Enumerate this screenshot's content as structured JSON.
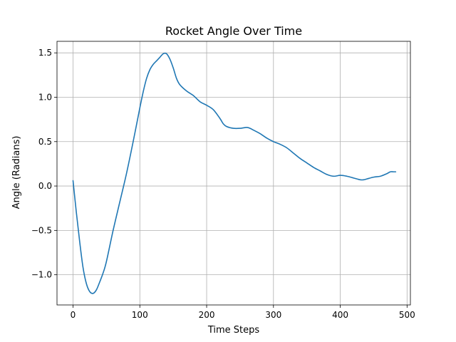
{
  "chart_data": {
    "type": "line",
    "title": "Rocket Angle Over Time",
    "xlabel": "Time Steps",
    "ylabel": "Angle (Radians)",
    "xlim": [
      -24,
      505
    ],
    "ylim": [
      -1.34,
      1.63
    ],
    "xticks": [
      0,
      100,
      200,
      300,
      400,
      500
    ],
    "xtick_labels": [
      "0",
      "100",
      "200",
      "300",
      "400",
      "500"
    ],
    "yticks": [
      -1.0,
      -0.5,
      0.0,
      0.5,
      1.0,
      1.5
    ],
    "ytick_labels": [
      "−1.0",
      "−0.5",
      "0.0",
      "0.5",
      "1.0",
      "1.5"
    ],
    "grid": true,
    "series": [
      {
        "color": "#1f77b4",
        "x": [
          0,
          5,
          10,
          15,
          20,
          25,
          30,
          35,
          40,
          45,
          50,
          60,
          70,
          80,
          90,
          100,
          105,
          110,
          115,
          120,
          125,
          130,
          135,
          140,
          145,
          150,
          155,
          160,
          170,
          180,
          190,
          200,
          210,
          220,
          225,
          230,
          240,
          250,
          260,
          265,
          270,
          280,
          290,
          300,
          310,
          320,
          330,
          340,
          350,
          360,
          370,
          380,
          390,
          400,
          410,
          420,
          425,
          430,
          435,
          440,
          450,
          460,
          470,
          475,
          480,
          483
        ],
        "y": [
          0.06,
          -0.3,
          -0.63,
          -0.92,
          -1.1,
          -1.19,
          -1.21,
          -1.17,
          -1.08,
          -0.98,
          -0.85,
          -0.5,
          -0.18,
          0.14,
          0.5,
          0.88,
          1.06,
          1.21,
          1.31,
          1.37,
          1.41,
          1.45,
          1.49,
          1.49,
          1.43,
          1.33,
          1.21,
          1.14,
          1.07,
          1.02,
          0.95,
          0.91,
          0.86,
          0.76,
          0.7,
          0.67,
          0.65,
          0.65,
          0.66,
          0.65,
          0.63,
          0.59,
          0.54,
          0.5,
          0.47,
          0.43,
          0.37,
          0.31,
          0.26,
          0.21,
          0.17,
          0.13,
          0.11,
          0.12,
          0.11,
          0.09,
          0.08,
          0.07,
          0.07,
          0.08,
          0.1,
          0.11,
          0.14,
          0.16,
          0.16,
          0.16
        ]
      }
    ]
  }
}
